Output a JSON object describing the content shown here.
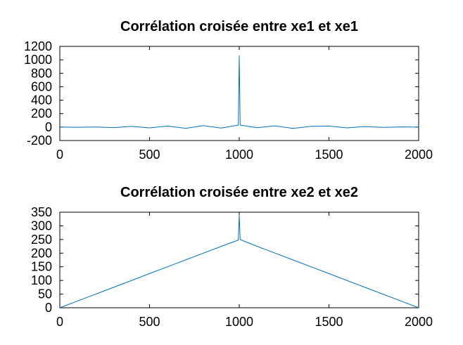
{
  "chart_data": [
    {
      "type": "line",
      "title": "Corrélation croisée entre xe1 et xe1",
      "xlabel": "",
      "ylabel": "",
      "xlim": [
        0,
        2000
      ],
      "ylim": [
        -200,
        1200
      ],
      "x_ticks": [
        0,
        500,
        1000,
        1500,
        2000
      ],
      "y_ticks": [
        -200,
        0,
        200,
        400,
        600,
        800,
        1000,
        1200
      ],
      "grid": false,
      "color": "#0072bd",
      "series": [
        {
          "x": [
            0,
            100,
            200,
            300,
            400,
            500,
            600,
            700,
            800,
            900,
            995,
            1000,
            1005,
            1100,
            1200,
            1300,
            1400,
            1500,
            1600,
            1700,
            1800,
            1900,
            2000
          ],
          "values": [
            0,
            -3,
            2,
            -8,
            10,
            -12,
            15,
            -18,
            20,
            -15,
            30,
            1060,
            30,
            -10,
            18,
            -20,
            12,
            15,
            -12,
            8,
            -5,
            3,
            0
          ]
        }
      ]
    },
    {
      "type": "line",
      "title": "Corrélation croisée entre xe2 et xe2",
      "xlabel": "",
      "ylabel": "",
      "xlim": [
        0,
        2000
      ],
      "ylim": [
        0,
        350
      ],
      "x_ticks": [
        0,
        500,
        1000,
        1500,
        2000
      ],
      "y_ticks": [
        0,
        50,
        100,
        150,
        200,
        250,
        300,
        350
      ],
      "grid": false,
      "color": "#0072bd",
      "series": [
        {
          "x": [
            0,
            100,
            200,
            300,
            400,
            500,
            600,
            700,
            800,
            900,
            995,
            1000,
            1005,
            1100,
            1200,
            1300,
            1400,
            1500,
            1600,
            1700,
            1800,
            1900,
            2000
          ],
          "values": [
            0,
            25,
            50,
            75,
            100,
            125,
            150,
            175,
            200,
            225,
            248,
            340,
            250,
            225,
            200,
            175,
            150,
            125,
            100,
            75,
            50,
            25,
            0
          ]
        }
      ]
    }
  ]
}
